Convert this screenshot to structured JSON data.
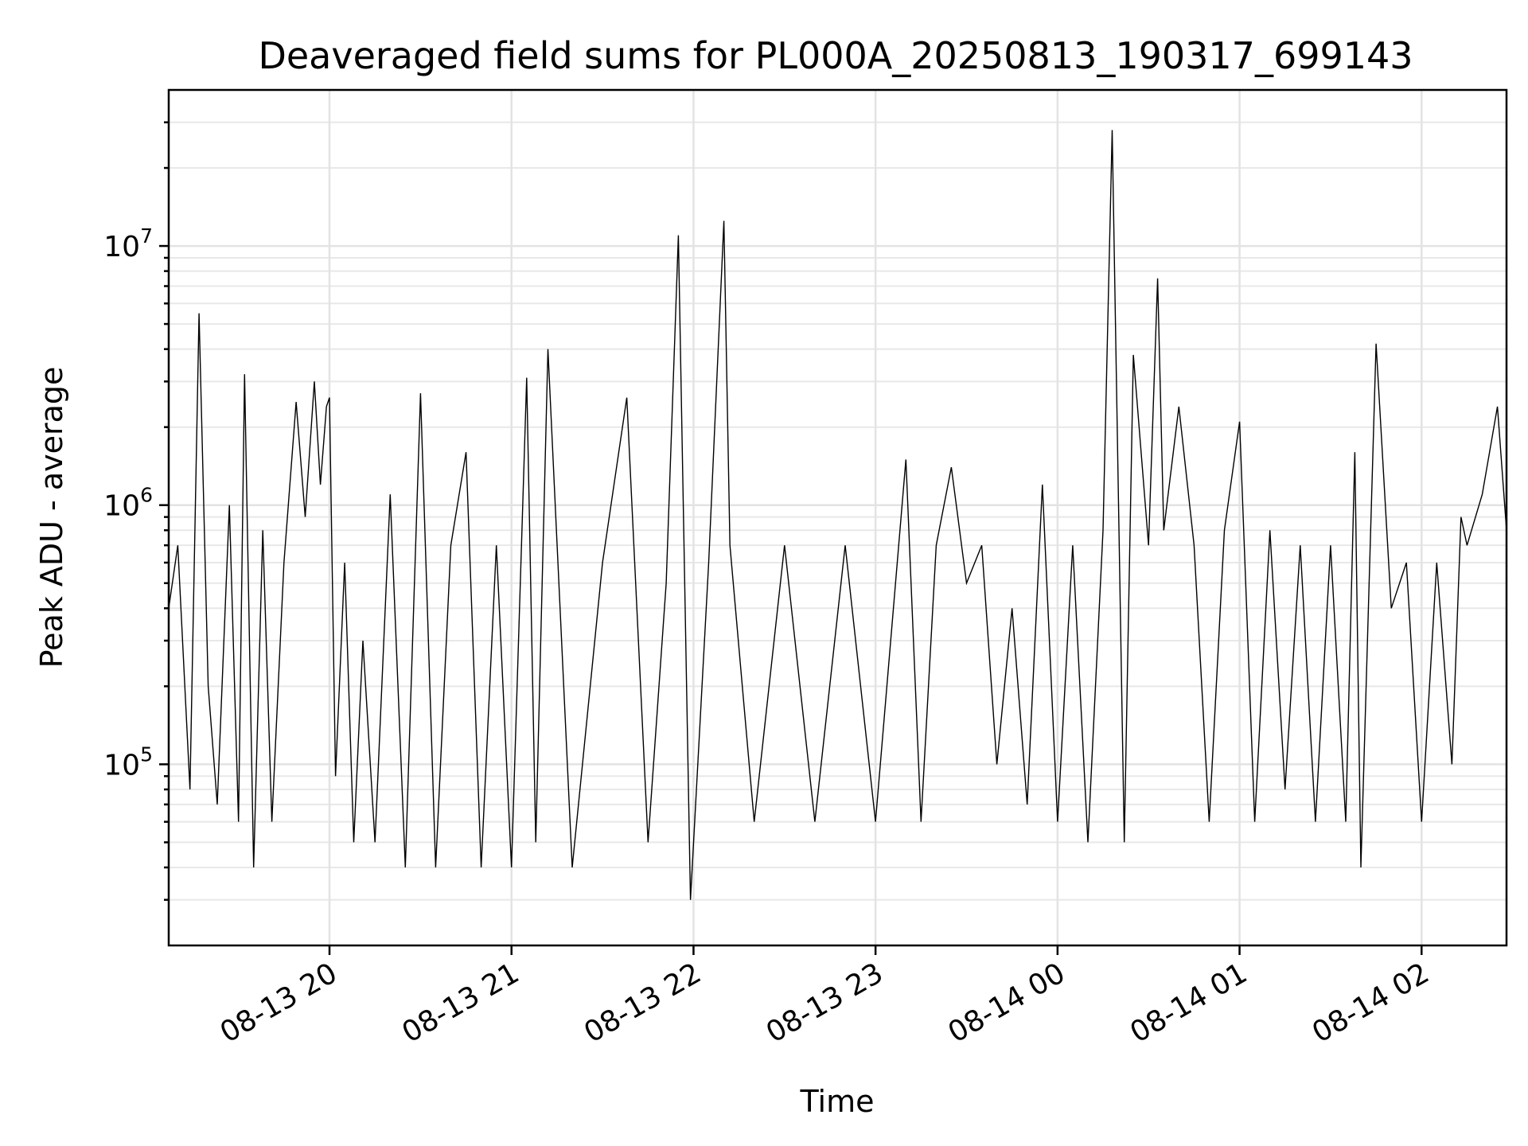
{
  "chart_data": {
    "type": "line",
    "title": "Deaveraged field sums for PL000A_20250813_190317_699143",
    "xlabel": "Time",
    "ylabel": "Peak ADU - average",
    "yscale": "log",
    "xlim": [
      "2025-08-13 19:07",
      "2025-08-14 02:28"
    ],
    "ylim": [
      20000,
      40000000
    ],
    "grid": "on",
    "legend": "none",
    "line_color": "#000000",
    "x_ticks": [
      {
        "label": "08-13 20",
        "value": "2025-08-13 20:00"
      },
      {
        "label": "08-13 21",
        "value": "2025-08-13 21:00"
      },
      {
        "label": "08-13 22",
        "value": "2025-08-13 22:00"
      },
      {
        "label": "08-13 23",
        "value": "2025-08-13 23:00"
      },
      {
        "label": "08-14 00",
        "value": "2025-08-14 00:00"
      },
      {
        "label": "08-14 01",
        "value": "2025-08-14 01:00"
      },
      {
        "label": "08-14 02",
        "value": "2025-08-14 02:00"
      }
    ],
    "y_ticks": [
      {
        "mantissa": "10",
        "exponent": "5",
        "value": 100000
      },
      {
        "mantissa": "10",
        "exponent": "6",
        "value": 1000000
      },
      {
        "mantissa": "10",
        "exponent": "7",
        "value": 10000000
      }
    ],
    "series": [
      {
        "x": [
          "2025-08-13 19:07",
          "2025-08-13 19:10",
          "2025-08-13 19:14",
          "2025-08-13 19:17",
          "2025-08-13 19:20",
          "2025-08-13 19:23",
          "2025-08-13 19:27",
          "2025-08-13 19:30",
          "2025-08-13 19:32",
          "2025-08-13 19:35",
          "2025-08-13 19:38",
          "2025-08-13 19:41",
          "2025-08-13 19:45",
          "2025-08-13 19:49",
          "2025-08-13 19:52",
          "2025-08-13 19:55",
          "2025-08-13 19:57",
          "2025-08-13 19:59",
          "2025-08-13 20:00",
          "2025-08-13 20:02",
          "2025-08-13 20:05",
          "2025-08-13 20:08",
          "2025-08-13 20:11",
          "2025-08-13 20:15",
          "2025-08-13 20:20",
          "2025-08-13 20:25",
          "2025-08-13 20:30",
          "2025-08-13 20:35",
          "2025-08-13 20:40",
          "2025-08-13 20:45",
          "2025-08-13 20:50",
          "2025-08-13 20:55",
          "2025-08-13 21:00",
          "2025-08-13 21:05",
          "2025-08-13 21:08",
          "2025-08-13 21:12",
          "2025-08-13 21:20",
          "2025-08-13 21:30",
          "2025-08-13 21:38",
          "2025-08-13 21:45",
          "2025-08-13 21:51",
          "2025-08-13 21:55",
          "2025-08-13 21:59",
          "2025-08-13 22:05",
          "2025-08-13 22:10",
          "2025-08-13 22:12",
          "2025-08-13 22:20",
          "2025-08-13 22:30",
          "2025-08-13 22:40",
          "2025-08-13 22:50",
          "2025-08-13 23:00",
          "2025-08-13 23:10",
          "2025-08-13 23:15",
          "2025-08-13 23:20",
          "2025-08-13 23:25",
          "2025-08-13 23:30",
          "2025-08-13 23:35",
          "2025-08-13 23:40",
          "2025-08-13 23:45",
          "2025-08-13 23:50",
          "2025-08-13 23:55",
          "2025-08-14 00:00",
          "2025-08-14 00:05",
          "2025-08-14 00:10",
          "2025-08-14 00:15",
          "2025-08-14 00:18",
          "2025-08-14 00:22",
          "2025-08-14 00:25",
          "2025-08-14 00:30",
          "2025-08-14 00:33",
          "2025-08-14 00:35",
          "2025-08-14 00:40",
          "2025-08-14 00:45",
          "2025-08-14 00:50",
          "2025-08-14 00:55",
          "2025-08-14 01:00",
          "2025-08-14 01:05",
          "2025-08-14 01:10",
          "2025-08-14 01:15",
          "2025-08-14 01:20",
          "2025-08-14 01:25",
          "2025-08-14 01:30",
          "2025-08-14 01:35",
          "2025-08-14 01:38",
          "2025-08-14 01:40",
          "2025-08-14 01:45",
          "2025-08-14 01:50",
          "2025-08-14 01:55",
          "2025-08-14 02:00",
          "2025-08-14 02:05",
          "2025-08-14 02:10",
          "2025-08-14 02:13",
          "2025-08-14 02:15",
          "2025-08-14 02:20",
          "2025-08-14 02:25",
          "2025-08-14 02:28"
        ],
        "values": [
          400000,
          700000,
          80000,
          5500000,
          200000,
          70000,
          1000000,
          60000,
          3200000,
          40000,
          800000,
          60000,
          600000,
          2500000,
          900000,
          3000000,
          1200000,
          2400000,
          2600000,
          90000,
          600000,
          50000,
          300000,
          50000,
          1100000,
          40000,
          2700000,
          40000,
          700000,
          1600000,
          40000,
          700000,
          40000,
          3100000,
          50000,
          4000000,
          40000,
          600000,
          2600000,
          50000,
          500000,
          11000000,
          30000,
          600000,
          12500000,
          700000,
          60000,
          700000,
          60000,
          700000,
          60000,
          1500000,
          60000,
          700000,
          1400000,
          500000,
          700000,
          100000,
          400000,
          70000,
          1200000,
          60000,
          700000,
          50000,
          800000,
          28000000,
          50000,
          3800000,
          700000,
          7500000,
          800000,
          2400000,
          700000,
          60000,
          800000,
          2100000,
          60000,
          800000,
          80000,
          700000,
          60000,
          700000,
          60000,
          1600000,
          40000,
          4200000,
          400000,
          600000,
          60000,
          600000,
          100000,
          900000,
          700000,
          1100000,
          2400000,
          800000
        ]
      }
    ]
  }
}
